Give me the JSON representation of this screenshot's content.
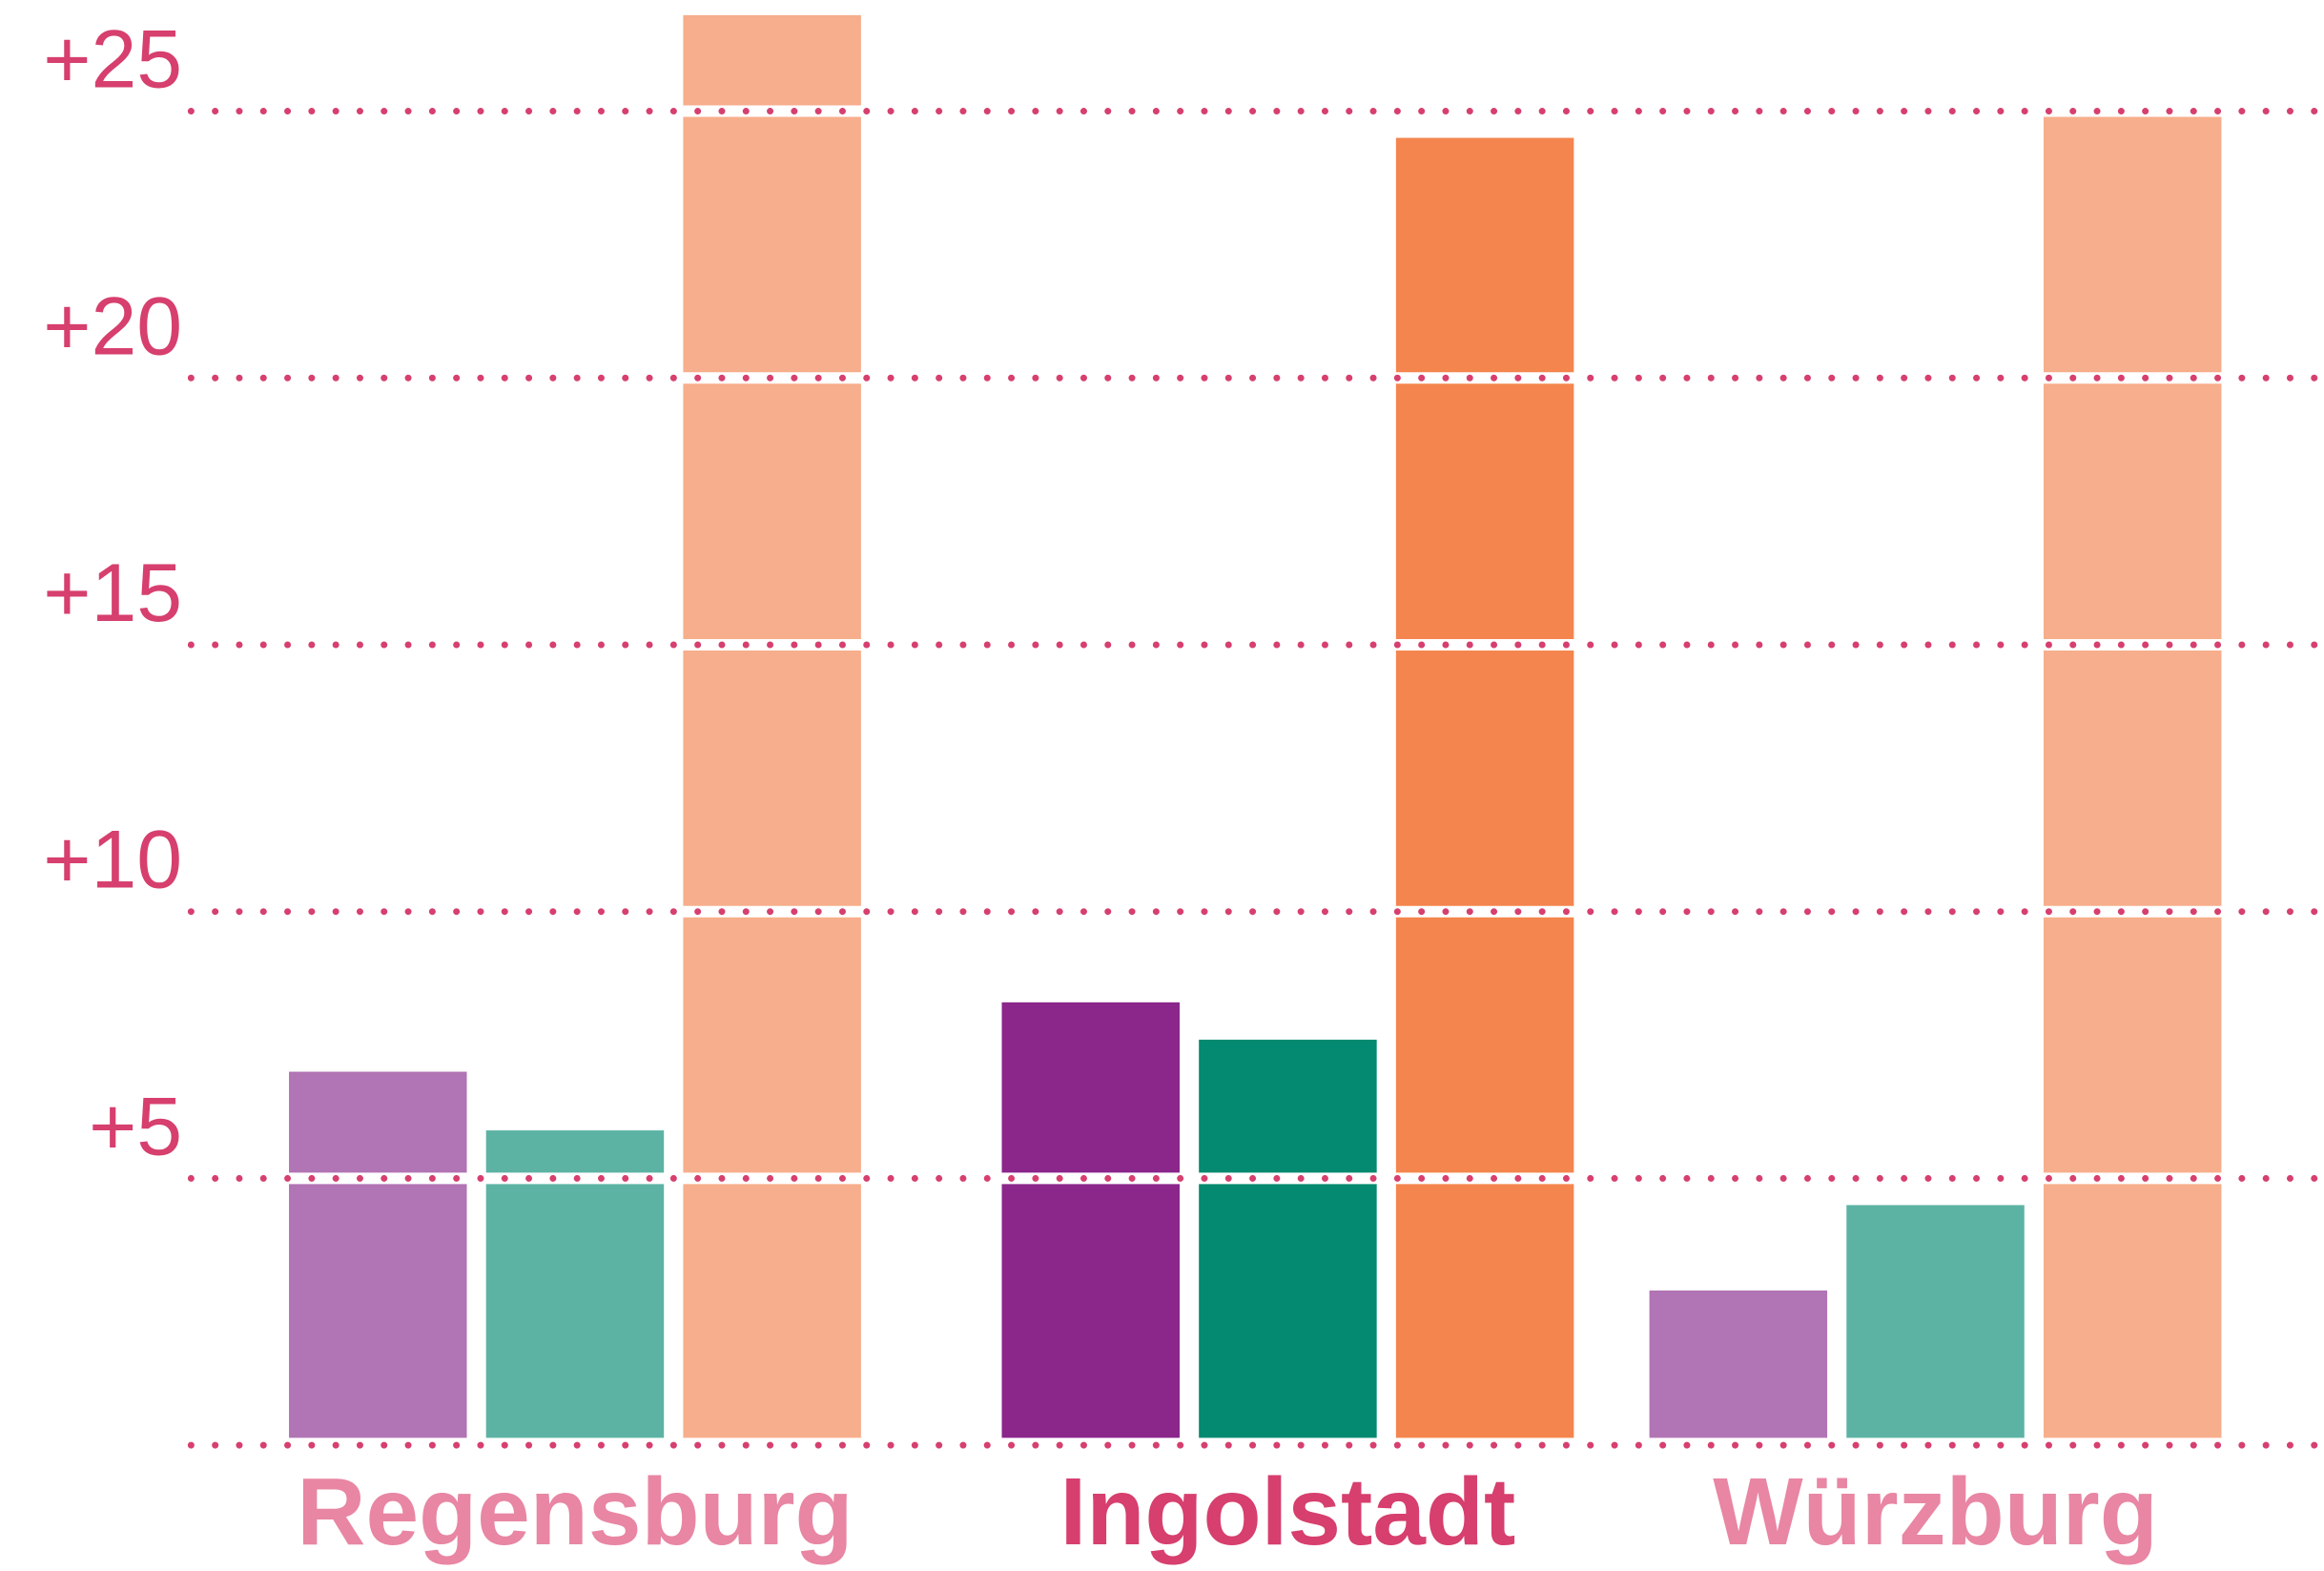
{
  "chart_data": {
    "type": "bar",
    "categories": [
      "Regensburg",
      "Ingolstadt",
      "Würzburg"
    ],
    "category_colors": [
      "#e886a3",
      "#d63f6e",
      "#e886a3"
    ],
    "series": [
      {
        "colors": [
          "#b174b4",
          "#8b268b",
          "#b174b4"
        ],
        "values": [
          7.0,
          8.3,
          2.9
        ]
      },
      {
        "colors": [
          "#5cb3a3",
          "#038a70",
          "#5cb3a3"
        ],
        "values": [
          5.9,
          7.6,
          4.5
        ]
      },
      {
        "colors": [
          "#f7ae8c",
          "#f4854e",
          "#f7ae8c"
        ],
        "values": [
          26.8,
          24.5,
          24.9
        ]
      }
    ],
    "ylim": [
      0,
      27
    ],
    "yticks": [
      {
        "value": 5,
        "label": "+5"
      },
      {
        "value": 10,
        "label": "+10"
      },
      {
        "value": 15,
        "label": "+15"
      },
      {
        "value": 20,
        "label": "+20"
      },
      {
        "value": 25,
        "label": "+25"
      }
    ],
    "grid": true,
    "grid_color": "#d63f6e",
    "tick_label_color": "#d63f6e"
  }
}
